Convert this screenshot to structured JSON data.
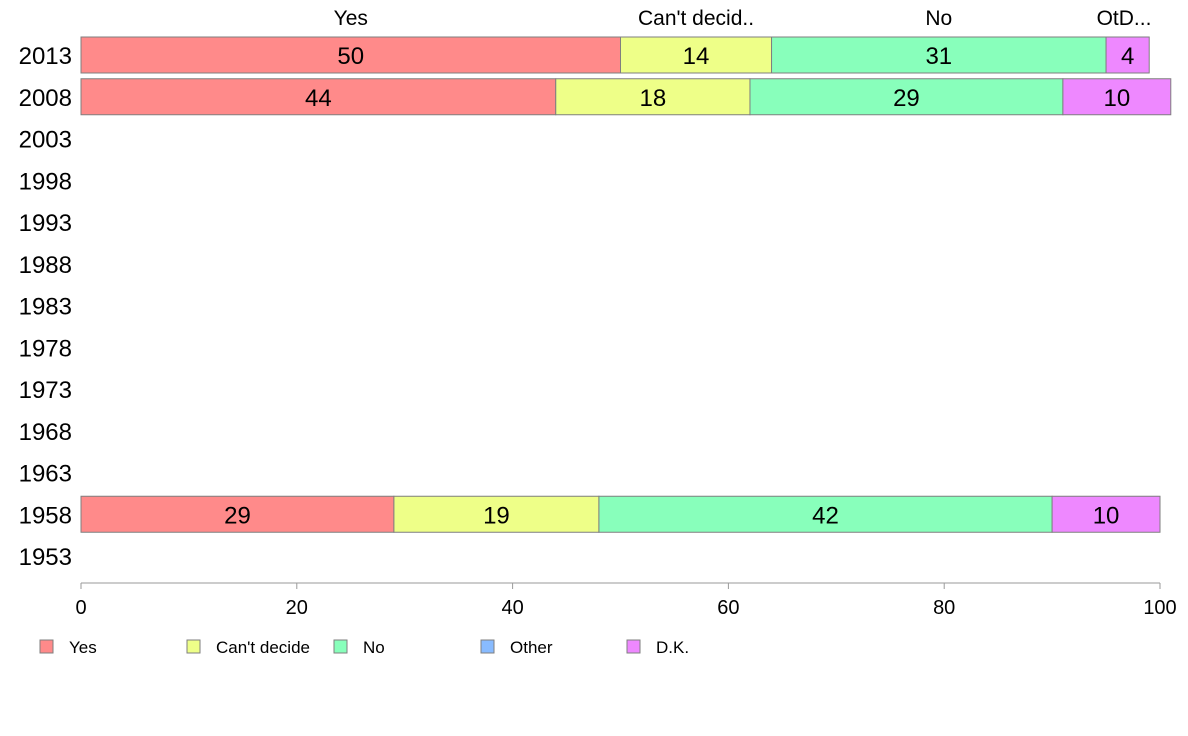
{
  "chart_data": {
    "type": "bar",
    "orientation": "horizontal",
    "stacked": true,
    "title": "",
    "xlabel": "",
    "ylabel": "",
    "xlim": [
      0,
      100
    ],
    "x_ticks": [
      0,
      20,
      40,
      60,
      80,
      100
    ],
    "grid": false,
    "legend_position": "bottom-left",
    "categories": [
      "2013",
      "2008",
      "2003",
      "1998",
      "1993",
      "1988",
      "1983",
      "1978",
      "1973",
      "1968",
      "1963",
      "1958",
      "1953"
    ],
    "column_labels": [
      "Yes",
      "Can't decid..",
      "No",
      "OtD..."
    ],
    "series": [
      {
        "name": "Yes",
        "color": "#ff8a8a",
        "values": [
          50,
          44,
          null,
          null,
          null,
          null,
          null,
          null,
          null,
          null,
          null,
          29,
          null
        ]
      },
      {
        "name": "Can't decide",
        "color": "#eeff88",
        "values": [
          14,
          18,
          null,
          null,
          null,
          null,
          null,
          null,
          null,
          null,
          null,
          19,
          null
        ]
      },
      {
        "name": "No",
        "color": "#88ffbb",
        "values": [
          31,
          29,
          null,
          null,
          null,
          null,
          null,
          null,
          null,
          null,
          null,
          42,
          null
        ]
      },
      {
        "name": "Other",
        "color": "#88bbff",
        "values": [
          0,
          0,
          null,
          null,
          null,
          null,
          null,
          null,
          null,
          null,
          null,
          0,
          null
        ]
      },
      {
        "name": "D.K.",
        "color": "#ee88ff",
        "values": [
          4,
          10,
          null,
          null,
          null,
          null,
          null,
          null,
          null,
          null,
          null,
          10,
          null
        ]
      }
    ]
  }
}
